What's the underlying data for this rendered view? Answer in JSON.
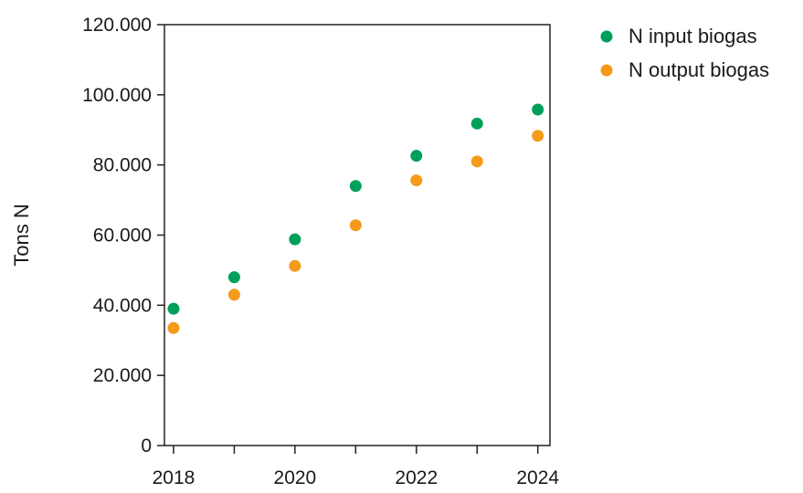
{
  "chart_data": {
    "type": "scatter",
    "title": "",
    "xlabel": "",
    "ylabel": "Tons N",
    "xlim": [
      2017.85,
      2024.2
    ],
    "ylim": [
      0,
      120000
    ],
    "x_ticks": [
      2018,
      2019,
      2020,
      2021,
      2022,
      2023,
      2024
    ],
    "x_tick_labels": [
      "2018",
      "",
      "2020",
      "",
      "2022",
      "",
      "2024"
    ],
    "y_ticks": [
      0,
      20000,
      40000,
      60000,
      80000,
      100000,
      120000
    ],
    "y_tick_labels": [
      "0",
      "20.000",
      "40.000",
      "60.000",
      "80.000",
      "100.000",
      "120.000"
    ],
    "grid": false,
    "legend_position": "top-right, outside plot",
    "series": [
      {
        "name": "N input biogas",
        "color": "#00a05a",
        "x": [
          2018,
          2019,
          2020,
          2021,
          2022,
          2023,
          2024
        ],
        "y": [
          39000,
          48000,
          58800,
          74000,
          82600,
          91800,
          95800
        ]
      },
      {
        "name": "N output biogas",
        "color": "#f59a1b",
        "x": [
          2018,
          2019,
          2020,
          2021,
          2022,
          2023,
          2024
        ],
        "y": [
          33500,
          43000,
          51200,
          62800,
          75600,
          81000,
          88300
        ]
      }
    ]
  }
}
